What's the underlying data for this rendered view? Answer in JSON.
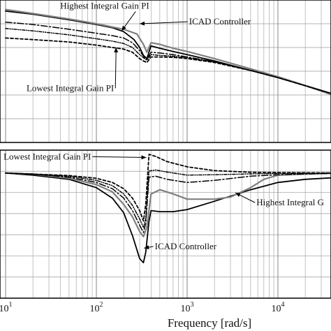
{
  "chart_data": {
    "type": "line",
    "x_scale": "log",
    "xlim": [
      10,
      50000
    ],
    "grid": true,
    "xlabel": "Frequency [rad/s]",
    "x_ticks": [
      {
        "value": 10,
        "base": "10",
        "exp": "1"
      },
      {
        "value": 100,
        "base": "10",
        "exp": "2"
      },
      {
        "value": 1000,
        "base": "10",
        "exp": "3"
      },
      {
        "value": 10000,
        "base": "10",
        "exp": "4"
      }
    ],
    "panels": [
      {
        "name": "magnitude",
        "ylim": [
          -5,
          4
        ],
        "series": [
          {
            "id": "pi_high",
            "color": "#000000",
            "dash": "",
            "width": 1.8,
            "x": [
              10,
              20,
              50,
              100,
              150,
              200,
              260,
              300,
              330,
              360,
              400,
              500,
              700,
              1000,
              2000,
              5000,
              10000,
              20000,
              50000
            ],
            "y": [
              3.3,
              3.1,
              2.75,
              2.45,
              2.25,
              2.0,
              1.5,
              1.0,
              0.5,
              0.3,
              1.1,
              0.95,
              0.75,
              0.55,
              0.15,
              -0.45,
              -0.9,
              -1.4,
              -2.1
            ]
          },
          {
            "id": "icad",
            "color": "#808080",
            "dash": "",
            "width": 2.2,
            "x": [
              10,
              20,
              50,
              100,
              200,
              280,
              330,
              360,
              400,
              500,
              700,
              1000,
              2000,
              5000,
              10000,
              20000,
              50000
            ],
            "y": [
              3.4,
              3.15,
              2.8,
              2.5,
              2.15,
              1.85,
              1.2,
              0.7,
              1.3,
              1.2,
              0.95,
              0.75,
              0.3,
              -0.35,
              -0.85,
              -1.4,
              -2.2
            ]
          },
          {
            "id": "pi_mid1",
            "color": "#000000",
            "dash": "9,3,2,3",
            "width": 1.5,
            "x": [
              10,
              20,
              50,
              100,
              150,
              200,
              250,
              300,
              330,
              360,
              400,
              500,
              700,
              1000,
              2000,
              5000,
              10000,
              50000
            ],
            "y": [
              2.6,
              2.45,
              2.15,
              1.9,
              1.75,
              1.6,
              1.3,
              0.8,
              0.45,
              0.25,
              0.7,
              0.65,
              0.55,
              0.4,
              0.1,
              -0.45,
              -0.9,
              -2.1
            ]
          },
          {
            "id": "pi_mid2",
            "color": "#000000",
            "dash": "4,2,1,2,1,2",
            "width": 1.5,
            "x": [
              10,
              20,
              50,
              100,
              150,
              200,
              250,
              300,
              330,
              360,
              400,
              500,
              700,
              1000,
              2000,
              5000,
              10000,
              50000
            ],
            "y": [
              2.2,
              2.05,
              1.8,
              1.55,
              1.4,
              1.25,
              1.0,
              0.55,
              0.35,
              0.2,
              0.55,
              0.5,
              0.45,
              0.35,
              0.1,
              -0.45,
              -0.9,
              -2.1
            ]
          },
          {
            "id": "pi_low",
            "color": "#000000",
            "dash": "4,3",
            "width": 1.8,
            "x": [
              10,
              20,
              50,
              100,
              150,
              200,
              250,
              300,
              330,
              360,
              400,
              500,
              700,
              1000,
              2000,
              5000,
              10000,
              50000
            ],
            "y": [
              1.6,
              1.5,
              1.35,
              1.15,
              1.0,
              0.9,
              0.7,
              0.3,
              0.15,
              0.05,
              0.4,
              0.4,
              0.38,
              0.3,
              0.05,
              -0.45,
              -0.9,
              -2.1
            ]
          }
        ],
        "annotations": [
          {
            "name": "label-highest-integral-gain-pi-mag",
            "text": "Highest Integral Gain PI",
            "text_at": [
              40,
              3.45
            ],
            "arrow_to": [
              190,
              2.05
            ]
          },
          {
            "name": "label-icad-controller-mag",
            "text": "ICAD Controller",
            "text_at": [
              1050,
              2.45
            ],
            "arrow_to": [
              300,
              2.5
            ]
          },
          {
            "name": "label-lowest-integral-gain-pi-mag",
            "text": "Lowest Integral Gain PI",
            "text_at": [
              17,
              -1.75
            ],
            "arrow_to": [
              165,
              1.0
            ]
          }
        ]
      },
      {
        "name": "phase",
        "ylim": [
          -6,
          1.1
        ],
        "series": [
          {
            "id": "pi_high",
            "color": "#000000",
            "dash": "",
            "width": 1.8,
            "x": [
              10,
              20,
              50,
              100,
              150,
              200,
              250,
              300,
              330,
              350,
              380,
              400,
              500,
              700,
              1000,
              2000,
              5000,
              10000,
              20000,
              50000
            ],
            "y": [
              0,
              -0.1,
              -0.3,
              -0.7,
              -1.2,
              -1.9,
              -3.0,
              -4.1,
              -4.3,
              -3.8,
              -2.3,
              -1.8,
              -1.85,
              -1.85,
              -1.75,
              -1.35,
              -0.8,
              -0.45,
              -0.3,
              -0.2
            ]
          },
          {
            "id": "icad",
            "color": "#808080",
            "dash": "",
            "width": 2.2,
            "x": [
              10,
              20,
              50,
              100,
              150,
              200,
              250,
              300,
              330,
              360,
              400,
              500,
              700,
              1000,
              2000,
              3000,
              5000,
              7000,
              10000,
              20000,
              50000
            ],
            "y": [
              0,
              -0.05,
              -0.25,
              -0.55,
              -0.9,
              -1.5,
              -2.1,
              -2.8,
              -3.05,
              -2.6,
              -1.0,
              -0.8,
              -1.0,
              -1.25,
              -1.25,
              -1.15,
              -0.7,
              -0.3,
              -0.1,
              -0.05,
              0
            ]
          },
          {
            "id": "pi_mid1",
            "color": "#000000",
            "dash": "9,3,2,3",
            "width": 1.5,
            "x": [
              10,
              20,
              50,
              100,
              150,
              200,
              250,
              300,
              330,
              350,
              380,
              450,
              600,
              1000,
              2000,
              5000,
              10000,
              50000
            ],
            "y": [
              0,
              -0.05,
              -0.2,
              -0.45,
              -0.75,
              -1.2,
              -1.8,
              -2.5,
              -2.85,
              -2.4,
              -0.2,
              -0.15,
              -0.3,
              -0.45,
              -0.35,
              -0.15,
              -0.08,
              0
            ]
          },
          {
            "id": "pi_mid2",
            "color": "#000000",
            "dash": "4,2,1,2,1,2",
            "width": 1.5,
            "x": [
              10,
              20,
              50,
              100,
              150,
              200,
              250,
              300,
              330,
              350,
              380,
              450,
              600,
              1000,
              2000,
              5000,
              10000,
              50000
            ],
            "y": [
              0,
              -0.05,
              -0.15,
              -0.35,
              -0.6,
              -1.0,
              -1.55,
              -2.2,
              -2.6,
              -2.2,
              0.1,
              0.15,
              0.05,
              -0.1,
              -0.08,
              -0.04,
              -0.02,
              0
            ]
          },
          {
            "id": "pi_low",
            "color": "#000000",
            "dash": "4,3",
            "width": 1.8,
            "x": [
              10,
              20,
              50,
              100,
              150,
              200,
              250,
              300,
              330,
              350,
              380,
              450,
              600,
              1000,
              2000,
              5000,
              10000,
              50000
            ],
            "y": [
              0,
              -0.05,
              -0.12,
              -0.25,
              -0.45,
              -0.75,
              -1.2,
              -1.8,
              -2.3,
              -1.5,
              0.9,
              0.8,
              0.55,
              0.3,
              0.12,
              0.04,
              0.02,
              0
            ]
          }
        ],
        "annotations": [
          {
            "name": "label-lowest-integral-gain-pi-phase",
            "text": "Lowest Integral Gain PI",
            "text_at": [
              9.5,
              0.65
            ],
            "arrow_to": [
              355,
              0.75
            ]
          },
          {
            "name": "label-highest-integral-g-phase",
            "text": "Highest Integral G",
            "text_at": [
              5800,
              -1.55
            ],
            "arrow_to": [
              3400,
              -0.95
            ]
          },
          {
            "name": "label-icad-controller-phase",
            "text": "ICAD Controller",
            "text_at": [
              440,
              -3.65
            ],
            "arrow_to": [
              335,
              -3.6
            ]
          }
        ]
      }
    ]
  }
}
